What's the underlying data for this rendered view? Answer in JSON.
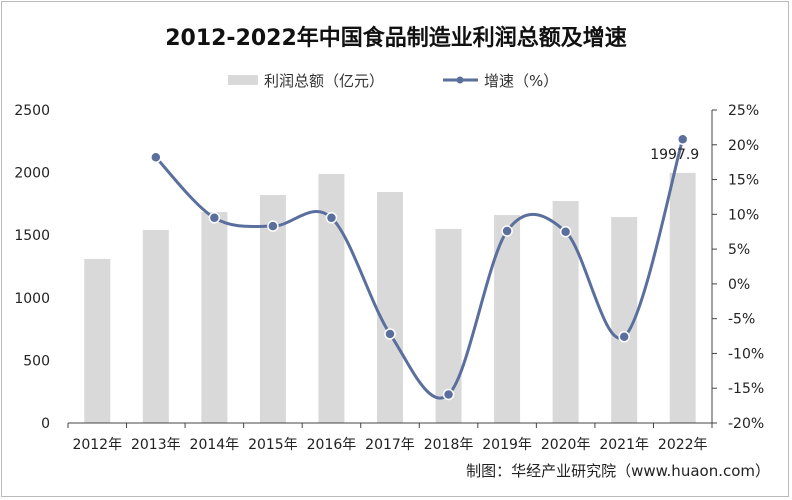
{
  "chart_data": {
    "type": "bar+line",
    "title": "2012-2022年中国食品制造业利润总额及增速",
    "categories": [
      "2012年",
      "2013年",
      "2014年",
      "2015年",
      "2016年",
      "2017年",
      "2018年",
      "2019年",
      "2020年",
      "2021年",
      "2022年"
    ],
    "series": [
      {
        "name": "利润总额（亿元）",
        "type": "bar",
        "axis": "left",
        "color": "#d9d9d9",
        "values": [
          1310,
          1542,
          1685,
          1821,
          1989,
          1845,
          1550,
          1661,
          1773,
          1645,
          1997.9
        ]
      },
      {
        "name": "增速（%）",
        "type": "line",
        "axis": "right",
        "color": "#5a6f9e",
        "smooth": true,
        "values": [
          null,
          18.2,
          9.5,
          8.3,
          9.5,
          -7.2,
          -15.9,
          7.6,
          7.5,
          -7.6,
          20.8
        ]
      }
    ],
    "left_axis": {
      "ylim": [
        0,
        2500
      ],
      "ticks": [
        "0",
        "500",
        "1000",
        "1500",
        "2000",
        "2500"
      ]
    },
    "right_axis": {
      "ylim": [
        -20,
        25
      ],
      "ticks": [
        "-20%",
        "-15%",
        "-10%",
        "-5%",
        "0%",
        "5%",
        "10%",
        "15%",
        "20%",
        "25%"
      ]
    },
    "data_labels": [
      {
        "category": "2022年",
        "text": "1997.9"
      }
    ],
    "legend": "top",
    "grid": false,
    "source": "制图：华经产业研究院（www.huaon.com）"
  }
}
